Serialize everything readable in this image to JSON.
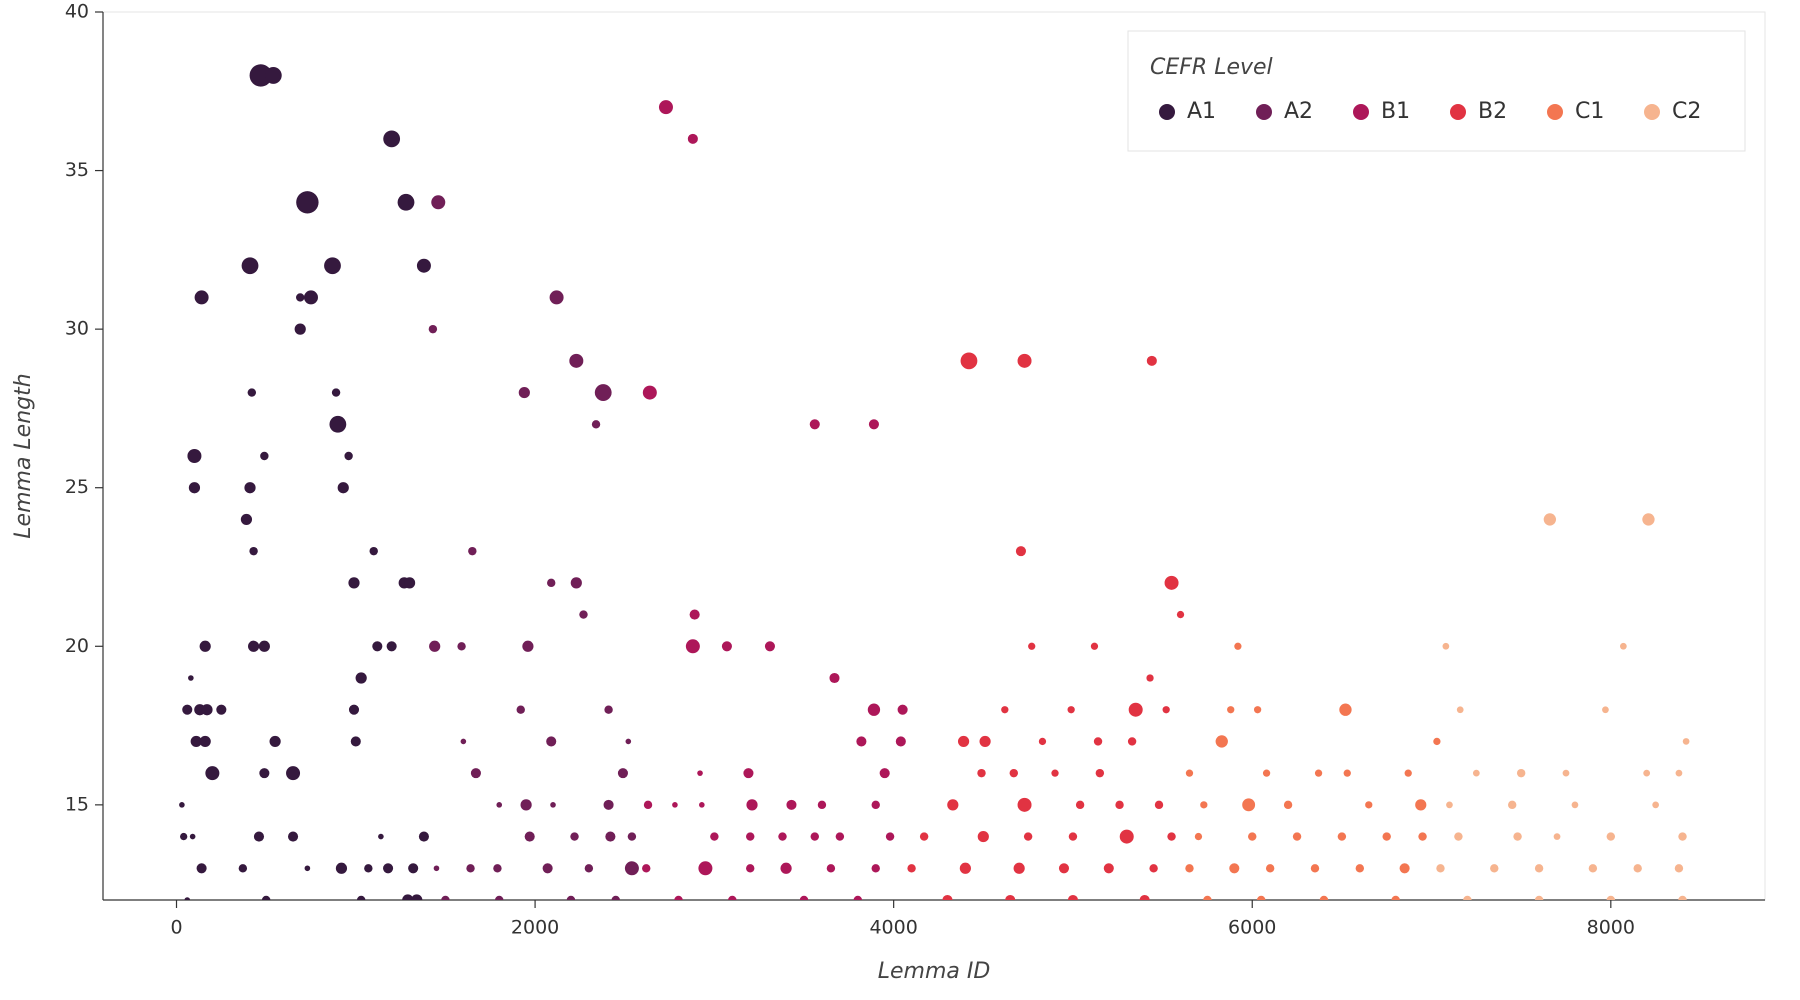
{
  "chart_data": {
    "type": "scatter",
    "x_label": "Lemma ID",
    "y_label": "Lemma Length",
    "legend_title": "CEFR Level",
    "legend_position": "upper right",
    "grid": false,
    "xlim": [
      -410,
      8860
    ],
    "ylim": [
      12,
      40
    ],
    "xticks": [
      0,
      2000,
      4000,
      6000,
      8000
    ],
    "yticks": [
      15,
      20,
      25,
      30,
      35,
      40
    ],
    "series": [
      {
        "name": "A1",
        "color": "#35193e",
        "x": [
          470,
          540,
          1200,
          730,
          1280,
          410,
          870,
          1380,
          140,
          750,
          690,
          690,
          420,
          890,
          900,
          100,
          490,
          960,
          100,
          410,
          930,
          390,
          430,
          1100,
          990,
          1270,
          1300,
          160,
          430,
          490,
          1120,
          1200,
          1030,
          80,
          60,
          130,
          170,
          250,
          990,
          110,
          160,
          550,
          1000,
          200,
          490,
          650,
          30,
          40,
          90,
          460,
          650,
          1140,
          1380,
          140,
          370,
          730,
          920,
          1070,
          1180,
          1320,
          60,
          500,
          1030,
          1290,
          1340
        ],
        "values": [
          38,
          38,
          36,
          34,
          34,
          32,
          32,
          32,
          31,
          31,
          31,
          30,
          28,
          28,
          27,
          26,
          26,
          26,
          25,
          25,
          25,
          24,
          23,
          23,
          22,
          22,
          22,
          20,
          20,
          20,
          20,
          20,
          19,
          19,
          18,
          18,
          18,
          18,
          18,
          17,
          17,
          17,
          17,
          16,
          16,
          16,
          15,
          14,
          14,
          14,
          14,
          14,
          14,
          13,
          13,
          13,
          13,
          13,
          13,
          13,
          12,
          12,
          12,
          12,
          12
        ],
        "sizes": [
          4,
          3,
          3,
          4,
          3,
          3,
          3,
          2.5,
          2.5,
          2.5,
          1.5,
          2,
          1.5,
          1.5,
          3,
          2.5,
          1.5,
          1.5,
          2,
          2,
          2,
          2,
          1.5,
          1.5,
          2,
          2,
          2,
          2,
          2,
          2,
          1.8,
          1.8,
          2,
          1,
          1.8,
          2,
          2,
          1.8,
          1.8,
          2,
          2,
          2,
          1.8,
          2.5,
          1.8,
          2.5,
          1,
          1.3,
          1,
          1.8,
          1.8,
          1,
          1.8,
          1.8,
          1.5,
          1,
          2,
          1.5,
          1.8,
          1.8,
          1,
          1.5,
          1.5,
          2,
          2
        ]
      },
      {
        "name": "A2",
        "color": "#701f57",
        "x": [
          1460,
          2120,
          1430,
          2230,
          1940,
          2380,
          2340,
          1650,
          2090,
          2230,
          2270,
          1440,
          1590,
          1960,
          1920,
          2410,
          1600,
          2090,
          2520,
          1670,
          2490,
          1800,
          1950,
          2100,
          2410,
          1970,
          2220,
          2420,
          2540,
          1450,
          1640,
          1790,
          2070,
          2300,
          2540,
          1500,
          1800,
          2200,
          2450
        ],
        "values": [
          34,
          31,
          30,
          29,
          28,
          28,
          27,
          23,
          22,
          22,
          21,
          20,
          20,
          20,
          18,
          18,
          17,
          17,
          17,
          16,
          16,
          15,
          15,
          15,
          15,
          14,
          14,
          14,
          14,
          13,
          13,
          13,
          13,
          13,
          13,
          12,
          12,
          12,
          12
        ],
        "sizes": [
          2.5,
          2.5,
          1.5,
          2.5,
          2,
          3,
          1.5,
          1.5,
          1.5,
          2,
          1.5,
          2,
          1.5,
          2,
          1.5,
          1.5,
          1,
          1.8,
          1,
          1.8,
          1.8,
          1,
          2,
          1,
          1.8,
          1.8,
          1.5,
          1.8,
          1.5,
          1,
          1.5,
          1.5,
          1.8,
          1.5,
          2.5,
          1.5,
          1.5,
          1.5,
          1.5
        ]
      },
      {
        "name": "B1",
        "color": "#ad1759",
        "x": [
          2730,
          2880,
          2640,
          3560,
          3890,
          2890,
          2880,
          3070,
          3310,
          3670,
          3890,
          4050,
          3820,
          4040,
          3190,
          3950,
          2920,
          2630,
          2930,
          3210,
          3430,
          3600,
          3900,
          2780,
          3000,
          3200,
          3380,
          3560,
          3700,
          3980,
          2620,
          2950,
          3200,
          3400,
          3650,
          3900,
          2800,
          3100,
          3500,
          3800
        ],
        "values": [
          37,
          36,
          28,
          27,
          27,
          21,
          20,
          20,
          20,
          19,
          18,
          18,
          17,
          17,
          16,
          16,
          16,
          15,
          15,
          15,
          15,
          15,
          15,
          15,
          14,
          14,
          14,
          14,
          14,
          14,
          13,
          13,
          13,
          13,
          13,
          13,
          12,
          12,
          12,
          12
        ],
        "sizes": [
          2.5,
          1.8,
          2.5,
          1.8,
          1.8,
          1.8,
          2.5,
          1.8,
          1.8,
          1.8,
          2.2,
          1.8,
          1.8,
          1.8,
          1.8,
          1.8,
          1,
          1.5,
          1,
          2,
          1.8,
          1.5,
          1.5,
          1,
          1.5,
          1.5,
          1.5,
          1.5,
          1.5,
          1.5,
          1.5,
          2.5,
          1.5,
          2,
          1.5,
          1.5,
          1.5,
          1.5,
          1.5,
          1.5
        ]
      },
      {
        "name": "B2",
        "color": "#e13342",
        "x": [
          4420,
          4730,
          5440,
          4710,
          5550,
          5600,
          4770,
          5120,
          5430,
          4620,
          4990,
          5350,
          5520,
          4390,
          4510,
          4830,
          5140,
          5330,
          4490,
          4670,
          4900,
          5150,
          4330,
          4730,
          5040,
          5260,
          5480,
          4170,
          4500,
          4750,
          5000,
          5300,
          5550,
          4100,
          4400,
          4700,
          4950,
          5200,
          5450,
          4300,
          4650,
          5000,
          5400
        ],
        "values": [
          29,
          29,
          29,
          23,
          22,
          21,
          20,
          20,
          19,
          18,
          18,
          18,
          18,
          17,
          17,
          17,
          17,
          17,
          16,
          16,
          16,
          16,
          15,
          15,
          15,
          15,
          15,
          14,
          14,
          14,
          14,
          14,
          14,
          13,
          13,
          13,
          13,
          13,
          13,
          12,
          12,
          12,
          12
        ],
        "sizes": [
          3,
          2.5,
          1.8,
          1.8,
          2.5,
          1.3,
          1.3,
          1.3,
          1.3,
          1.3,
          1.3,
          2.5,
          1.3,
          2,
          2,
          1.3,
          1.5,
          1.5,
          1.5,
          1.5,
          1.3,
          1.5,
          2,
          2.5,
          1.5,
          1.5,
          1.5,
          1.5,
          2,
          1.5,
          1.5,
          2.5,
          1.5,
          1.5,
          2,
          2,
          1.8,
          1.8,
          1.5,
          1.8,
          1.8,
          1.8,
          1.8
        ]
      },
      {
        "name": "C1",
        "color": "#f37651",
        "x": [
          5920,
          5830,
          6520,
          5880,
          6030,
          7030,
          5650,
          6080,
          6370,
          6530,
          6870,
          5730,
          5980,
          6200,
          6650,
          6940,
          5700,
          6000,
          6250,
          6500,
          6750,
          6950,
          5650,
          5900,
          6100,
          6350,
          6600,
          6850,
          5750,
          6050,
          6400,
          6800
        ],
        "values": [
          20,
          17,
          18,
          18,
          18,
          17,
          16,
          16,
          16,
          16,
          16,
          15,
          15,
          15,
          15,
          15,
          14,
          14,
          14,
          14,
          14,
          14,
          13,
          13,
          13,
          13,
          13,
          13,
          12,
          12,
          12,
          12
        ],
        "sizes": [
          1.3,
          2.2,
          2.2,
          1.3,
          1.3,
          1.3,
          1.3,
          1.3,
          1.3,
          1.3,
          1.3,
          1.3,
          2.3,
          1.5,
          1.3,
          2,
          1.3,
          1.5,
          1.5,
          1.5,
          1.5,
          1.5,
          1.5,
          1.8,
          1.5,
          1.5,
          1.5,
          1.8,
          1.5,
          1.5,
          1.5,
          1.5
        ]
      },
      {
        "name": "C2",
        "color": "#f6b48f",
        "x": [
          7660,
          8210,
          7080,
          8070,
          7160,
          7970,
          8420,
          7250,
          7500,
          7750,
          8200,
          8380,
          7100,
          7450,
          7800,
          8250,
          7150,
          7480,
          7700,
          8000,
          8400,
          7050,
          7350,
          7600,
          7900,
          8150,
          8380,
          7200,
          7600,
          8000,
          8400
        ],
        "values": [
          24,
          24,
          20,
          20,
          18,
          18,
          17,
          16,
          16,
          16,
          16,
          16,
          15,
          15,
          15,
          15,
          14,
          14,
          14,
          14,
          14,
          13,
          13,
          13,
          13,
          13,
          13,
          12,
          12,
          12,
          12
        ],
        "sizes": [
          2.2,
          2.2,
          1.2,
          1.2,
          1.2,
          1.2,
          1.2,
          1.2,
          1.5,
          1.2,
          1.2,
          1.2,
          1.2,
          1.5,
          1.2,
          1.2,
          1.5,
          1.5,
          1.2,
          1.5,
          1.5,
          1.5,
          1.5,
          1.5,
          1.5,
          1.5,
          1.5,
          1.5,
          1.5,
          1.5,
          1.5
        ]
      }
    ]
  }
}
